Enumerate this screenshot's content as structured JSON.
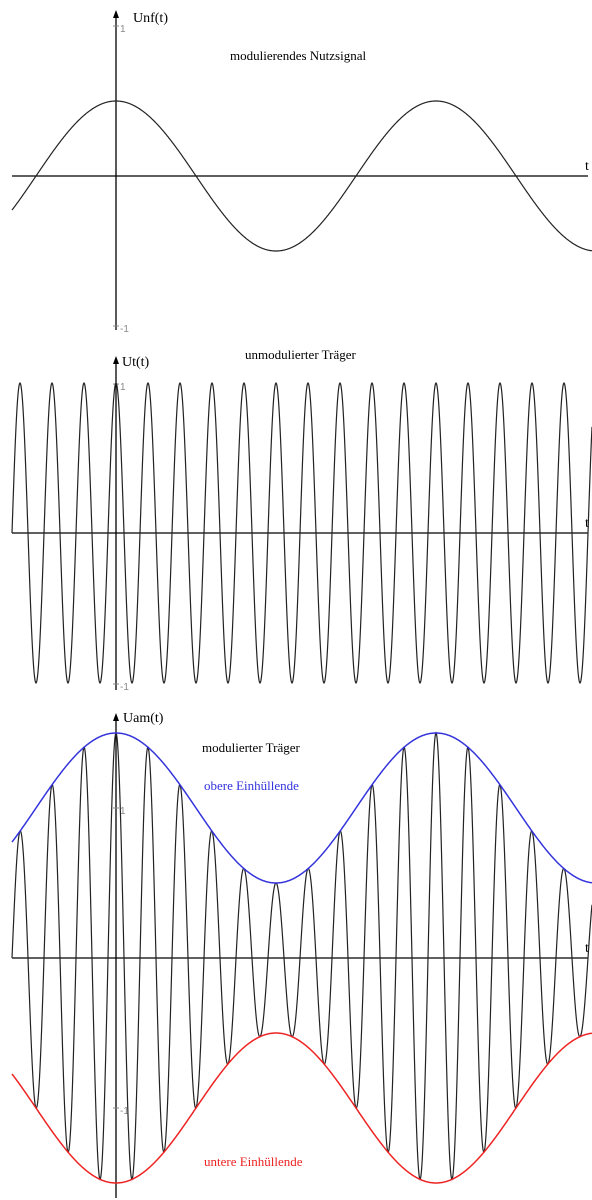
{
  "chart_data": [
    {
      "type": "line",
      "title": "modulierendes Nutzsignal",
      "ylabel": "Unf(t)",
      "xlabel": "t",
      "ytick_labels": [
        "1",
        "-1"
      ],
      "ylim": [
        -1,
        1
      ],
      "series": [
        {
          "function": "cos",
          "amplitude": 0.5,
          "periods_per_unit": 1,
          "color": "#222222"
        }
      ],
      "grid": false
    },
    {
      "type": "line",
      "title": "unmodulierter Träger",
      "ylabel": "Ut(t)",
      "xlabel": "t",
      "ytick_labels": [
        "1",
        "-1"
      ],
      "ylim": [
        -1,
        1
      ],
      "series": [
        {
          "function": "cos",
          "amplitude": 1,
          "periods_per_unit": 10,
          "color": "#222222"
        }
      ],
      "grid": false
    },
    {
      "type": "line",
      "title": "modulierter Träger",
      "ylabel": "Uam(t)",
      "xlabel": "t",
      "ytick_labels": [
        "1",
        "-1"
      ],
      "ylim": [
        -1.5,
        1.5
      ],
      "series": [
        {
          "function": "am_carrier",
          "carrier_periods_per_unit": 10,
          "envelope_offset": 1,
          "envelope_amplitude": 0.5,
          "color": "#222222"
        },
        {
          "name": "obere Einhüllende",
          "function": "upper_envelope",
          "color": "#3333dd"
        },
        {
          "name": "untere Einhüllende",
          "function": "lower_envelope",
          "color": "#ee2222"
        }
      ],
      "grid": false
    }
  ],
  "colors": {
    "upper_envelope": "#3333dd",
    "lower_envelope": "#ee2222",
    "curve": "#222222"
  }
}
